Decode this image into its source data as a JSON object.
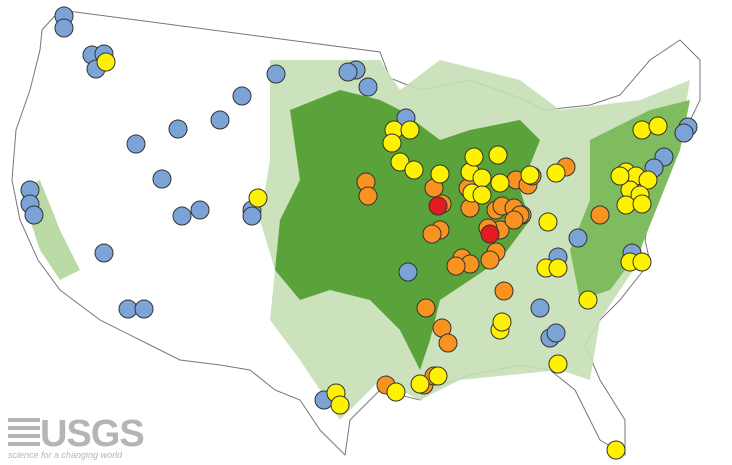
{
  "logo": {
    "name": "USGS",
    "tagline": "science for a changing world"
  }
}
